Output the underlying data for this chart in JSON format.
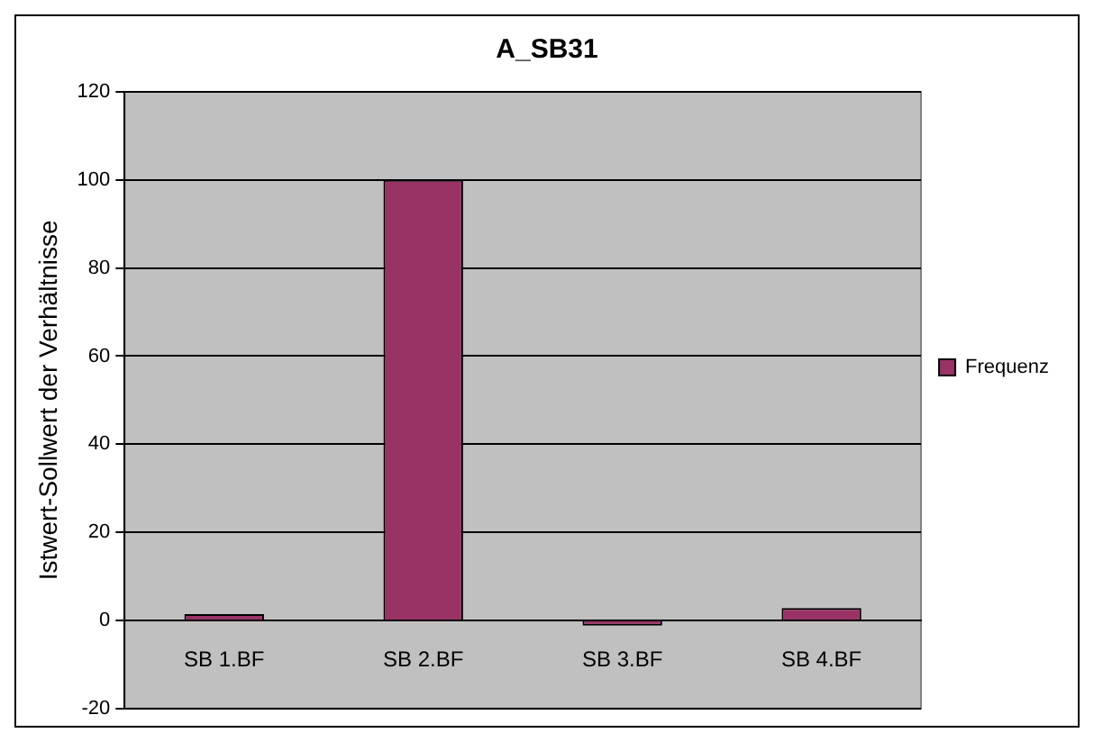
{
  "chart_data": {
    "type": "bar",
    "title": "A_SB31",
    "ylabel": "Istwert-Sollwert der Verhältnisse",
    "categories": [
      "SB 1.BF",
      "SB 2.BF",
      "SB 3.BF",
      "SB 4.BF"
    ],
    "series": [
      {
        "name": "Frequenz",
        "color": "#993366",
        "values": [
          1.4,
          100,
          -1.2,
          2.8
        ]
      }
    ],
    "ylim": [
      -20,
      120
    ],
    "yticks": [
      -20,
      0,
      20,
      40,
      60,
      80,
      100,
      120
    ],
    "grid": "y",
    "legend": "right"
  }
}
